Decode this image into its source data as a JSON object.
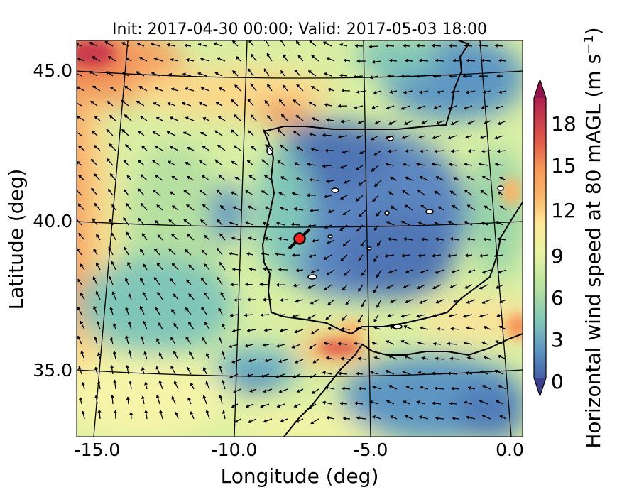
{
  "title": "Init: 2017-04-30 00:00; Valid: 2017-05-03 18:00",
  "axes": {
    "xlabel": "Longitude (deg)",
    "ylabel": "Latitude (deg)",
    "xticks": [
      "-15.0",
      "-10.0",
      "-5.0",
      "0.0"
    ],
    "yticks": [
      "45.0",
      "40.0",
      "35.0"
    ]
  },
  "colorbar": {
    "label_main": "Horizontal wind speed at 80 mAGL (m s",
    "label_sup": "−1",
    "label_end": ")",
    "ticks": [
      "0",
      "3",
      "6",
      "9",
      "12",
      "15",
      "18"
    ],
    "min": 0,
    "max": 20,
    "extend": "both",
    "colors": [
      "#4560a8",
      "#4f7bb8",
      "#5d96c2",
      "#6bb0c4",
      "#80c6b8",
      "#9ad4a8",
      "#b6e0a0",
      "#d0eaa0",
      "#e8f4a2",
      "#fbf8b0",
      "#fee898",
      "#fdd080",
      "#fbb56a",
      "#f79658",
      "#ef7850",
      "#e0584a",
      "#ca3a4e",
      "#b0204e",
      "#96104a"
    ]
  },
  "marker": {
    "label": "site",
    "lon": -7.7,
    "lat": 39.3,
    "color": "#ff2020"
  },
  "map_extent": {
    "lon": [
      -16.0,
      0.3
    ],
    "lat": [
      32.7,
      46.2
    ]
  }
}
